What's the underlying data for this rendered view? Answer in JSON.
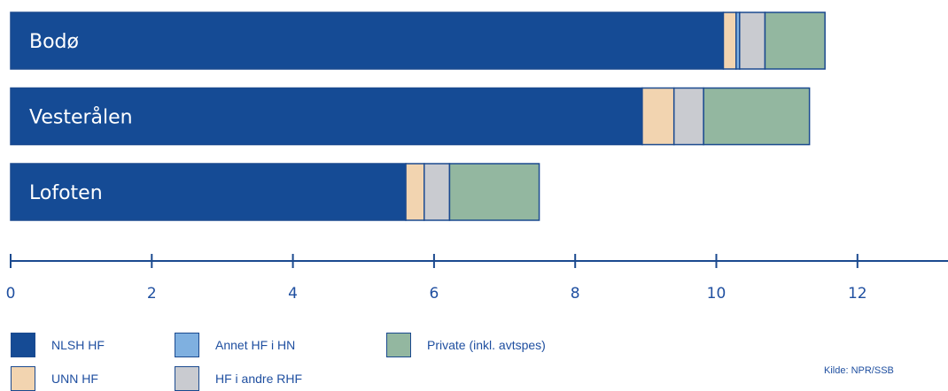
{
  "chart_data": {
    "type": "bar",
    "orientation": "horizontal",
    "stacked": true,
    "categories": [
      "Bodø",
      "Vesterålen",
      "Lofoten"
    ],
    "series": [
      {
        "name": "NLSH HF",
        "color": "#154b95",
        "values": [
          10.1,
          8.95,
          5.6
        ]
      },
      {
        "name": "UNN HF",
        "color": "#f2d4b0",
        "values": [
          0.18,
          0.45,
          0.26
        ]
      },
      {
        "name": "Annet HF i HN",
        "color": "#7fb0e0",
        "values": [
          0.05,
          0.0,
          0.0
        ]
      },
      {
        "name": "HF i andre RHF",
        "color": "#c9cbd0",
        "values": [
          0.36,
          0.42,
          0.36
        ]
      },
      {
        "name": "Private  (inkl. avtspes)",
        "color": "#93b7a0",
        "values": [
          0.85,
          1.5,
          1.27
        ]
      }
    ],
    "xlim": [
      0,
      13.2
    ],
    "ticks": [
      0,
      2,
      4,
      6,
      8,
      10,
      12
    ],
    "tick_labels": [
      "0",
      "2",
      "4",
      "6",
      "8",
      "10",
      "12"
    ],
    "grid": false,
    "legend_position": "bottom",
    "source": "Kilde: NPR/SSB"
  }
}
